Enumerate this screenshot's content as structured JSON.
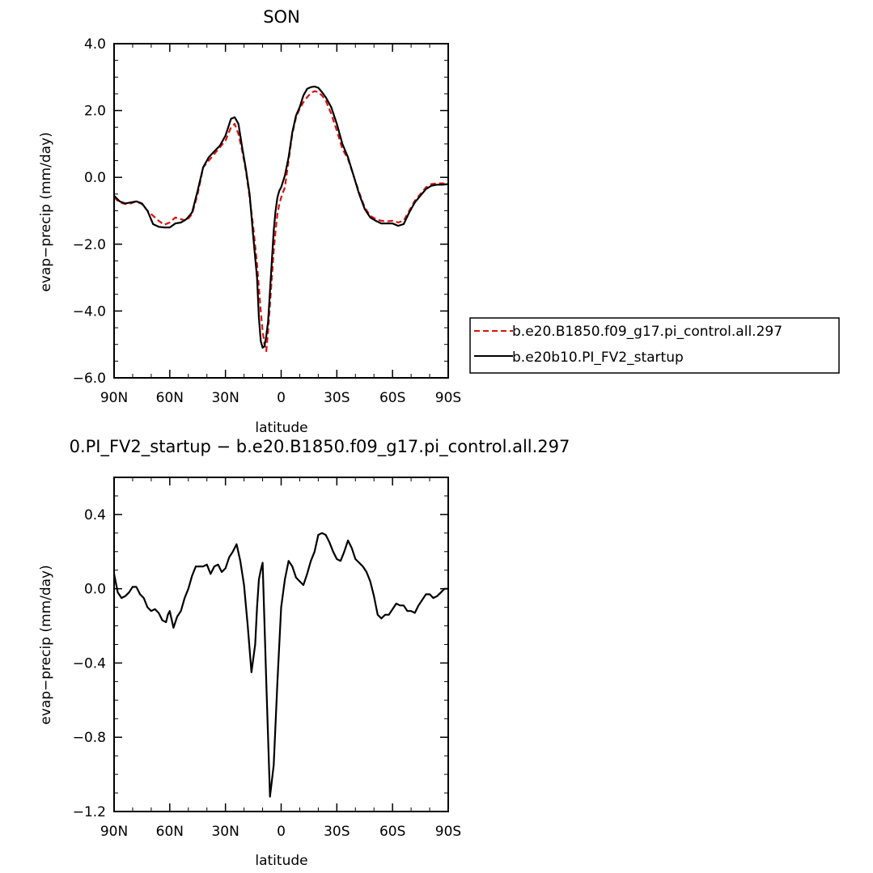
{
  "chart_data": [
    {
      "type": "line",
      "title": "SON",
      "xlabel": "latitude",
      "ylabel": "evap−precip (mm/day)",
      "xlim": [
        90,
        -90
      ],
      "ylim": [
        -6.0,
        4.0
      ],
      "xticks": [
        90,
        60,
        30,
        0,
        -30,
        -60,
        -90
      ],
      "xticklabels": [
        "90N",
        "60N",
        "30N",
        "0",
        "30S",
        "60S",
        "90S"
      ],
      "yticks": [
        -6,
        -4,
        -2,
        0,
        2,
        4
      ],
      "yticklabels": [
        "−6.0",
        "−4.0",
        "−2.0",
        "0.0",
        "2.0",
        "4.0"
      ],
      "legend": "right",
      "series": [
        {
          "name": "b.e20.B1850.f09_g17.pi_control.all.297",
          "color": "#dd1010",
          "style": "dashed",
          "x": [
            90,
            87,
            84,
            81,
            78,
            75,
            72,
            69,
            66,
            63,
            60,
            57,
            54,
            51,
            48,
            45,
            42,
            39,
            36,
            33,
            30,
            27,
            25,
            23,
            21,
            19,
            17,
            15,
            13,
            12,
            11,
            10,
            9,
            8,
            7,
            6,
            5,
            4,
            3,
            2,
            1,
            0,
            -2,
            -4,
            -6,
            -8,
            -10,
            -12,
            -14,
            -16,
            -18,
            -20,
            -22,
            -24,
            -27,
            -30,
            -33,
            -36,
            -39,
            -42,
            -45,
            -48,
            -51,
            -54,
            -57,
            -60,
            -63,
            -66,
            -69,
            -72,
            -75,
            -78,
            -81,
            -84,
            -87,
            -90
          ],
          "y": [
            -0.6,
            -0.75,
            -0.8,
            -0.78,
            -0.72,
            -0.8,
            -1.0,
            -1.15,
            -1.3,
            -1.42,
            -1.35,
            -1.2,
            -1.25,
            -1.3,
            -1.1,
            -0.5,
            0.3,
            0.5,
            0.7,
            0.9,
            1.1,
            1.5,
            1.6,
            1.3,
            0.8,
            0.2,
            -0.6,
            -1.5,
            -2.6,
            -3.3,
            -4.0,
            -4.6,
            -5.0,
            -5.2,
            -4.6,
            -3.8,
            -3.0,
            -2.2,
            -1.6,
            -1.1,
            -0.8,
            -0.6,
            -0.3,
            0.5,
            1.3,
            1.8,
            2.05,
            2.25,
            2.4,
            2.52,
            2.58,
            2.55,
            2.45,
            2.3,
            1.9,
            1.4,
            0.85,
            0.55,
            0.05,
            -0.45,
            -0.9,
            -1.15,
            -1.25,
            -1.3,
            -1.32,
            -1.3,
            -1.35,
            -1.3,
            -1.0,
            -0.7,
            -0.5,
            -0.3,
            -0.2,
            -0.18,
            -0.18,
            -0.2
          ]
        },
        {
          "name": "b.e20b10.PI_FV2_startup",
          "color": "#000000",
          "style": "solid",
          "x": [
            90,
            87,
            84,
            81,
            78,
            75,
            72,
            69,
            66,
            63,
            60,
            57,
            54,
            51,
            48,
            45,
            42,
            39,
            36,
            33,
            30,
            27,
            25,
            23,
            21,
            19,
            17,
            15,
            13,
            12,
            11,
            10,
            9,
            8,
            7,
            6,
            5,
            4,
            3,
            2,
            1,
            0,
            -2,
            -4,
            -6,
            -8,
            -10,
            -12,
            -14,
            -16,
            -18,
            -20,
            -22,
            -24,
            -27,
            -30,
            -33,
            -36,
            -39,
            -42,
            -45,
            -48,
            -51,
            -54,
            -57,
            -60,
            -63,
            -66,
            -69,
            -72,
            -75,
            -78,
            -81,
            -84,
            -87,
            -90
          ],
          "y": [
            -0.55,
            -0.72,
            -0.78,
            -0.75,
            -0.72,
            -0.78,
            -1.0,
            -1.4,
            -1.48,
            -1.5,
            -1.5,
            -1.38,
            -1.35,
            -1.25,
            -1.05,
            -0.4,
            0.3,
            0.6,
            0.78,
            0.95,
            1.25,
            1.75,
            1.8,
            1.6,
            0.9,
            0.25,
            -0.5,
            -1.8,
            -3.0,
            -4.2,
            -4.9,
            -5.1,
            -5.05,
            -4.75,
            -4.3,
            -3.4,
            -2.5,
            -1.6,
            -1.0,
            -0.6,
            -0.4,
            -0.3,
            0.05,
            0.6,
            1.35,
            1.85,
            2.1,
            2.45,
            2.65,
            2.7,
            2.72,
            2.68,
            2.55,
            2.4,
            2.1,
            1.6,
            1.0,
            0.6,
            0.05,
            -0.5,
            -0.95,
            -1.2,
            -1.3,
            -1.38,
            -1.38,
            -1.38,
            -1.45,
            -1.4,
            -1.05,
            -0.75,
            -0.55,
            -0.35,
            -0.25,
            -0.22,
            -0.22,
            -0.2
          ]
        }
      ]
    },
    {
      "type": "line",
      "title": "0.PI_FV2_startup − b.e20.B1850.f09_g17.pi_control.all.297",
      "xlabel": "latitude",
      "ylabel": "evap−precip (mm/day)",
      "xlim": [
        90,
        -90
      ],
      "ylim": [
        -1.2,
        0.6
      ],
      "xticks": [
        90,
        60,
        30,
        0,
        -30,
        -60,
        -90
      ],
      "xticklabels": [
        "90N",
        "60N",
        "30N",
        "0",
        "30S",
        "60S",
        "90S"
      ],
      "yticks": [
        -1.2,
        -0.8,
        -0.4,
        0.0,
        0.4
      ],
      "yticklabels": [
        "−1.2",
        "−0.8",
        "−0.4",
        "0.0",
        "0.4"
      ],
      "series": [
        {
          "color": "#000000",
          "style": "solid",
          "x": [
            90,
            88,
            86,
            84,
            82,
            80,
            78,
            76,
            74,
            72,
            70,
            68,
            66,
            64,
            62,
            61,
            60,
            58,
            56,
            54,
            52,
            50,
            48,
            46,
            44,
            42,
            40,
            38,
            36,
            34,
            32,
            30,
            28,
            26,
            24,
            22,
            20,
            18,
            16,
            14,
            13,
            12,
            11,
            10,
            8,
            6,
            4,
            2,
            0,
            -2,
            -4,
            -6,
            -8,
            -10,
            -12,
            -14,
            -16,
            -18,
            -20,
            -22,
            -24,
            -26,
            -28,
            -30,
            -32,
            -34,
            -36,
            -38,
            -40,
            -42,
            -44,
            -46,
            -48,
            -50,
            -52,
            -54,
            -56,
            -58,
            -60,
            -62,
            -64,
            -66,
            -68,
            -70,
            -72,
            -74,
            -76,
            -78,
            -80,
            -82,
            -84,
            -86,
            -88,
            -90
          ],
          "y": [
            0.08,
            -0.02,
            -0.05,
            -0.04,
            -0.02,
            0.01,
            0.01,
            -0.03,
            -0.05,
            -0.1,
            -0.12,
            -0.11,
            -0.13,
            -0.17,
            -0.18,
            -0.14,
            -0.12,
            -0.21,
            -0.15,
            -0.12,
            -0.05,
            0.0,
            0.07,
            0.12,
            0.12,
            0.12,
            0.13,
            0.08,
            0.12,
            0.13,
            0.09,
            0.11,
            0.17,
            0.2,
            0.24,
            0.15,
            0.02,
            -0.2,
            -0.45,
            -0.3,
            -0.1,
            0.05,
            0.1,
            0.14,
            -0.5,
            -1.12,
            -0.95,
            -0.5,
            -0.1,
            0.05,
            0.15,
            0.12,
            0.06,
            0.04,
            0.02,
            0.08,
            0.15,
            0.2,
            0.29,
            0.3,
            0.29,
            0.25,
            0.2,
            0.16,
            0.15,
            0.2,
            0.26,
            0.22,
            0.16,
            0.14,
            0.12,
            0.09,
            0.04,
            -0.04,
            -0.14,
            -0.16,
            -0.14,
            -0.14,
            -0.11,
            -0.08,
            -0.09,
            -0.09,
            -0.12,
            -0.12,
            -0.13,
            -0.09,
            -0.06,
            -0.03,
            -0.03,
            -0.05,
            -0.04,
            -0.02,
            0.0,
            0.0
          ]
        }
      ]
    }
  ]
}
